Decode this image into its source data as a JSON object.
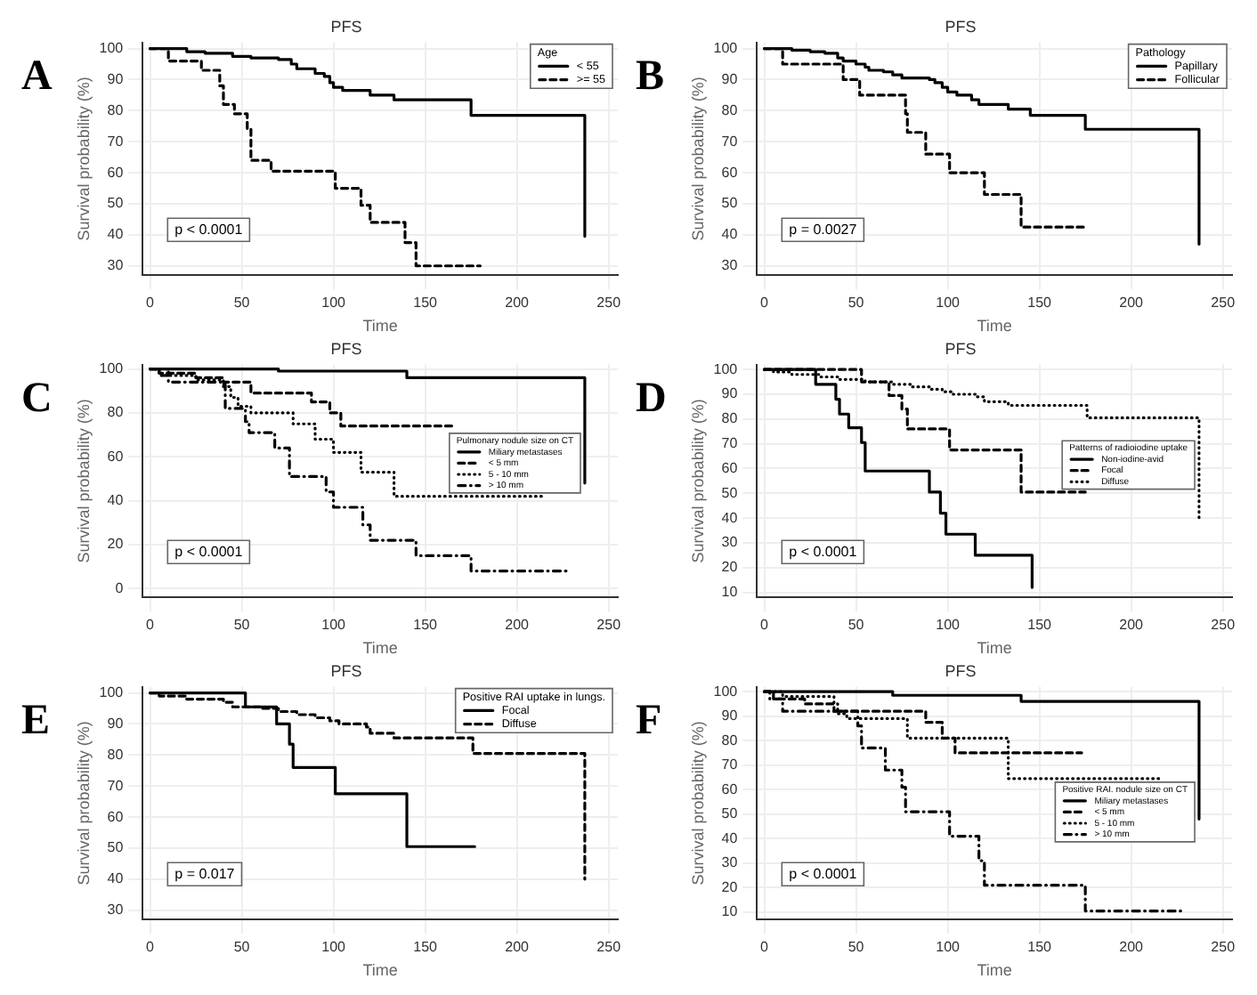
{
  "chart_data": [
    {
      "type": "step",
      "title": "PFS",
      "xlabel": "Time",
      "ylabel": "Survival probability (%)",
      "legend_title": "Age",
      "legend": "top right",
      "grid": true,
      "annotations": [
        "A",
        "p < 0.0001"
      ],
      "xlim": [
        -4,
        255
      ],
      "xticks": [
        0,
        50,
        100,
        150,
        200,
        250
      ],
      "ylim": [
        27,
        102
      ],
      "yticks": [
        30,
        40,
        50,
        60,
        70,
        80,
        90,
        100
      ],
      "series": [
        {
          "name": "< 55",
          "color": "#000000",
          "line_style": "solid",
          "x": [
            0,
            20,
            30,
            45,
            55,
            70,
            77,
            80,
            90,
            95,
            98,
            100,
            105,
            120,
            133,
            175,
            237
          ],
          "values": [
            100,
            99,
            98.5,
            97.5,
            97,
            96.5,
            95,
            93.5,
            92,
            91,
            89,
            87.5,
            86.5,
            85,
            83.5,
            78.5,
            39.5
          ]
        },
        {
          "name": ">= 55",
          "color": "#000000",
          "line_style": "dashed",
          "x": [
            0,
            10,
            28,
            38,
            40,
            46,
            53,
            55,
            66,
            101,
            115,
            120,
            139,
            145,
            180
          ],
          "values": [
            100,
            96,
            93,
            88,
            82,
            79,
            74,
            64,
            60.5,
            55,
            49.5,
            44,
            37.5,
            30,
            30
          ]
        }
      ]
    },
    {
      "type": "step",
      "title": "PFS",
      "xlabel": "Time",
      "ylabel": "Survival probability (%)",
      "legend_title": "Pathology",
      "legend": "top right",
      "grid": true,
      "annotations": [
        "B",
        "p = 0.0027"
      ],
      "xlim": [
        -4,
        255
      ],
      "xticks": [
        0,
        50,
        100,
        150,
        200,
        250
      ],
      "ylim": [
        27,
        102
      ],
      "yticks": [
        30,
        40,
        50,
        60,
        70,
        80,
        90,
        100
      ],
      "series": [
        {
          "name": "Papillary",
          "color": "#000000",
          "line_style": "solid",
          "x": [
            0,
            15,
            25,
            33,
            40,
            43,
            50,
            55,
            57,
            65,
            70,
            75,
            90,
            93,
            97,
            100,
            105,
            113,
            117,
            133,
            145,
            175,
            237
          ],
          "values": [
            100,
            99.5,
            99,
            98.5,
            97,
            96,
            95,
            94,
            93,
            92.5,
            91.5,
            90.5,
            90,
            89,
            87.5,
            86,
            85,
            83.5,
            82,
            80.5,
            78.5,
            74,
            37
          ]
        },
        {
          "name": "Follicular",
          "color": "#000000",
          "line_style": "dashed",
          "x": [
            0,
            10,
            43,
            52,
            77,
            78,
            88,
            101,
            120,
            140,
            176
          ],
          "values": [
            100,
            95,
            90,
            85,
            79,
            73,
            66,
            60,
            53,
            42.5,
            42.5
          ]
        }
      ]
    },
    {
      "type": "step",
      "title": "PFS",
      "xlabel": "Time",
      "ylabel": "Survival probability (%)",
      "legend_title": "Pulmonary nodule size on CT",
      "legend": "right",
      "grid": true,
      "annotations": [
        "C",
        "p < 0.0001"
      ],
      "xlim": [
        -4,
        255
      ],
      "xticks": [
        0,
        50,
        100,
        150,
        200,
        250
      ],
      "ylim": [
        -4,
        102
      ],
      "yticks": [
        0,
        20,
        40,
        60,
        80,
        100
      ],
      "series": [
        {
          "name": "Miliary metastases",
          "color": "#000000",
          "line_style": "solid",
          "x": [
            0,
            70,
            140,
            237
          ],
          "values": [
            100,
            99,
            96,
            48
          ]
        },
        {
          "name": "< 5 mm",
          "color": "#000000",
          "line_style": "dashed",
          "x": [
            0,
            5,
            25,
            40,
            55,
            88,
            98,
            104,
            166
          ],
          "values": [
            100,
            98,
            96,
            94,
            89,
            85,
            80,
            74,
            74
          ]
        },
        {
          "name": "5 - 10 mm",
          "color": "#000000",
          "line_style": "dotted",
          "x": [
            0,
            10,
            25,
            40,
            44,
            48,
            55,
            78,
            90,
            100,
            115,
            133,
            215
          ],
          "values": [
            100,
            97,
            95,
            92,
            87,
            83,
            80,
            75,
            68,
            62,
            53,
            42,
            42
          ]
        },
        {
          "name": "> 10 mm",
          "color": "#000000",
          "line_style": "dashdot",
          "x": [
            0,
            5,
            10,
            40,
            41,
            52,
            54,
            68,
            76,
            96,
            100,
            116,
            120,
            145,
            175,
            227
          ],
          "values": [
            100,
            97,
            94,
            93,
            82,
            76,
            71,
            64,
            51,
            44,
            37,
            29,
            22,
            15,
            8,
            8
          ]
        }
      ]
    },
    {
      "type": "step",
      "title": "PFS",
      "xlabel": "Time",
      "ylabel": "Survival probability (%)",
      "legend_title": "Patterns of radioiodine uptake",
      "legend": "right",
      "grid": true,
      "annotations": [
        "D",
        "p < 0.0001"
      ],
      "xlim": [
        -4,
        255
      ],
      "xticks": [
        0,
        50,
        100,
        150,
        200,
        250
      ],
      "ylim": [
        8,
        102
      ],
      "yticks": [
        10,
        20,
        30,
        40,
        50,
        60,
        70,
        80,
        90,
        100
      ],
      "series": [
        {
          "name": "Non-iodine-avid",
          "color": "#000000",
          "line_style": "solid",
          "x": [
            0,
            28,
            39,
            41,
            46,
            53,
            55,
            90,
            96,
            99,
            115,
            146
          ],
          "values": [
            100,
            94,
            88,
            82,
            76.5,
            70.5,
            59,
            50.5,
            42,
            33.5,
            25,
            12
          ]
        },
        {
          "name": "Focal",
          "color": "#000000",
          "line_style": "dashed",
          "x": [
            0,
            53,
            68,
            75,
            78,
            101,
            140,
            175
          ],
          "values": [
            100,
            95,
            89.5,
            84,
            76,
            67.5,
            50.5,
            50.5
          ]
        },
        {
          "name": "Diffuse",
          "color": "#000000",
          "line_style": "dotted",
          "x": [
            0,
            5,
            15,
            30,
            40,
            55,
            70,
            80,
            90,
            97,
            103,
            115,
            120,
            133,
            176,
            237
          ],
          "values": [
            100,
            99,
            98,
            97,
            96,
            95,
            94,
            93,
            92,
            91,
            90,
            89,
            87,
            85.5,
            80.5,
            40
          ]
        }
      ]
    },
    {
      "type": "step",
      "title": "PFS",
      "xlabel": "Time",
      "ylabel": "Survival probability (%)",
      "legend_title": "Positive RAI uptake in lungs.",
      "legend": "top right",
      "grid": true,
      "annotations": [
        "E",
        "p = 0.017"
      ],
      "xlim": [
        -4,
        255
      ],
      "xticks": [
        0,
        50,
        100,
        150,
        200,
        250
      ],
      "ylim": [
        27,
        102
      ],
      "yticks": [
        30,
        40,
        50,
        60,
        70,
        80,
        90,
        100
      ],
      "series": [
        {
          "name": "Focal",
          "color": "#000000",
          "line_style": "solid",
          "x": [
            0,
            52,
            69,
            76,
            78,
            101,
            140,
            177
          ],
          "values": [
            100,
            95.5,
            90,
            83.5,
            76,
            67.5,
            50.5,
            50.5
          ]
        },
        {
          "name": "Diffuse",
          "color": "#000000",
          "line_style": "dashed",
          "x": [
            0,
            5,
            20,
            40,
            45,
            60,
            70,
            80,
            90,
            98,
            103,
            118,
            120,
            133,
            176,
            237
          ],
          "values": [
            100,
            99,
            98,
            97,
            95.5,
            95,
            94,
            93,
            92,
            91,
            90,
            89,
            87,
            85.5,
            80.5,
            40
          ]
        }
      ]
    },
    {
      "type": "step",
      "title": "PFS",
      "xlabel": "Time",
      "ylabel": "Survival probability (%)",
      "legend_title": "Positive RAI. nodule size on CT",
      "legend": "right",
      "grid": true,
      "annotations": [
        "F",
        "p < 0.0001"
      ],
      "xlim": [
        -4,
        255
      ],
      "xticks": [
        0,
        50,
        100,
        150,
        200,
        250
      ],
      "ylim": [
        7,
        102
      ],
      "yticks": [
        10,
        20,
        30,
        40,
        50,
        60,
        70,
        80,
        90,
        100
      ],
      "series": [
        {
          "name": "Miliary metastases",
          "color": "#000000",
          "line_style": "solid",
          "x": [
            0,
            70,
            140,
            237
          ],
          "values": [
            100,
            98.5,
            96,
            48
          ]
        },
        {
          "name": "< 5 mm",
          "color": "#000000",
          "line_style": "dashed",
          "x": [
            0,
            5,
            22,
            38,
            88,
            97,
            104,
            173
          ],
          "values": [
            100,
            97,
            95,
            92,
            87.5,
            81,
            75,
            75
          ]
        },
        {
          "name": "5 - 10 mm",
          "color": "#000000",
          "line_style": "dotted",
          "x": [
            0,
            10,
            38,
            40,
            45,
            78,
            133,
            217
          ],
          "values": [
            100,
            98,
            95,
            91,
            89,
            81,
            64.5,
            64.5
          ]
        },
        {
          "name": "> 10 mm",
          "color": "#000000",
          "line_style": "dashdot",
          "x": [
            0,
            3,
            10,
            51,
            53,
            66,
            75,
            77,
            101,
            117,
            120,
            175,
            227
          ],
          "values": [
            100,
            97,
            92,
            86,
            77,
            68,
            61,
            51,
            41,
            31,
            21,
            10.5,
            10.5
          ]
        }
      ]
    }
  ]
}
